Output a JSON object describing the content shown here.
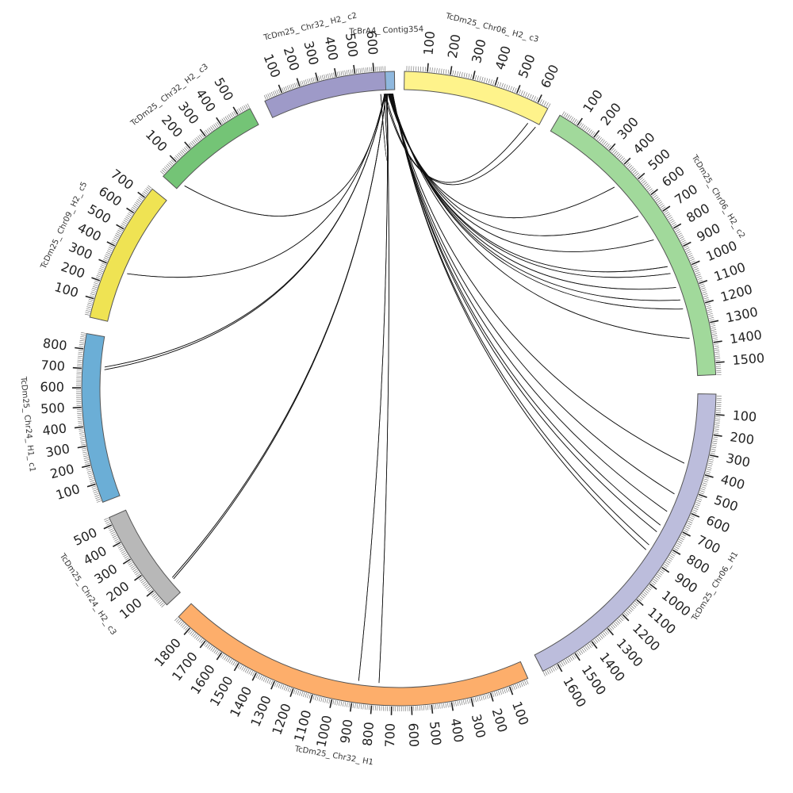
{
  "chart_data": {
    "type": "circos",
    "segments": [
      {
        "id": "contig354",
        "name": "TcBrA4_ Contig354",
        "length": 40,
        "color": "#8fb8de",
        "start_deg": -3.2,
        "end_deg": -0.8,
        "tick_step": 0
      },
      {
        "id": "chr06h2c3",
        "name": "TcDm25_ Chr06_ H2_ c3",
        "length": 650,
        "color": "#fef38b",
        "start_deg": 1.0,
        "end_deg": 28.0,
        "tick_step": 100
      },
      {
        "id": "chr06h2c2",
        "name": "TcDm25_ Chr06_ H2_ c2",
        "length": 1560,
        "color": "#a1d99b",
        "start_deg": 30.5,
        "end_deg": 87.5,
        "tick_step": 100
      },
      {
        "id": "chr06h1",
        "name": "TcDm25_ Chr06_ H1",
        "length": 1680,
        "color": "#bcbddc",
        "start_deg": 91.0,
        "end_deg": 153.0,
        "tick_step": 100
      },
      {
        "id": "chr32h1",
        "name": "TcDm25_ Chr32_ H1",
        "length": 1880,
        "color": "#fdae6b",
        "start_deg": 156.0,
        "end_deg": 224.0,
        "tick_step": 100
      },
      {
        "id": "chr24h2c3",
        "name": "TcDm25_ Chr24_ H2_ c3",
        "length": 540,
        "color": "#b8b8b8",
        "start_deg": 227.0,
        "end_deg": 246.0,
        "tick_step": 100
      },
      {
        "id": "chr24h1c1",
        "name": "TcDm25_ Chr24_ H1_ c1",
        "length": 880,
        "color": "#6baed6",
        "start_deg": 249.0,
        "end_deg": 280.0,
        "tick_step": 100
      },
      {
        "id": "chr09h2c5",
        "name": "TcDm25_ Chr09_ H2_ c5",
        "length": 760,
        "color": "#efe353",
        "start_deg": 283.0,
        "end_deg": 309.0,
        "tick_step": 100
      },
      {
        "id": "chr32h2c3",
        "name": "TcDm25_ Chr32_ H2_ c3",
        "length": 570,
        "color": "#74c476",
        "start_deg": 312.0,
        "end_deg": 332.0,
        "tick_step": 100
      },
      {
        "id": "chr32h2c2",
        "name": "TcDm25_ Chr32_ H2_ c2",
        "length": 660,
        "color": "#9e9ac8",
        "start_deg": 335.0,
        "end_deg": 357.5,
        "tick_step": 100
      }
    ],
    "links": [
      {
        "from": "contig354",
        "from_pos": 5,
        "to": "chr06h2c3",
        "to_pos": 640,
        "color": "#8fb8de"
      },
      {
        "from": "contig354",
        "from_pos": 10,
        "to": "chr06h2c3",
        "to_pos": 600,
        "color": "#a0522d"
      },
      {
        "from": "contig354",
        "from_pos": 12,
        "to": "chr32h2c2",
        "to_pos": 650,
        "color": "#222222"
      },
      {
        "from": "contig354",
        "from_pos": 14,
        "to": "chr32h2c2",
        "to_pos": 630,
        "color": "#222222"
      },
      {
        "from": "contig354",
        "from_pos": 18,
        "to": "chr06h2c2",
        "to_pos": 450,
        "color": "#9e9ac8"
      },
      {
        "from": "contig354",
        "from_pos": 20,
        "to": "chr06h2c2",
        "to_pos": 650,
        "color": "#d2691e"
      },
      {
        "from": "contig354",
        "from_pos": 21,
        "to": "chr06h2c2",
        "to_pos": 800,
        "color": "#222222"
      },
      {
        "from": "contig354",
        "from_pos": 22,
        "to": "chr06h2c2",
        "to_pos": 960,
        "color": "#efe353"
      },
      {
        "from": "contig354",
        "from_pos": 23,
        "to": "chr06h2c2",
        "to_pos": 1000,
        "color": "#222222"
      },
      {
        "from": "contig354",
        "from_pos": 24,
        "to": "chr06h2c2",
        "to_pos": 1080,
        "color": "#6baed6"
      },
      {
        "from": "contig354",
        "from_pos": 25,
        "to": "chr06h2c2",
        "to_pos": 1150,
        "color": "#222222"
      },
      {
        "from": "contig354",
        "from_pos": 26,
        "to": "chr06h2c2",
        "to_pos": 1200,
        "color": "#6baed6"
      },
      {
        "from": "contig354",
        "from_pos": 27,
        "to": "chr06h2c2",
        "to_pos": 1360,
        "color": "#222222"
      },
      {
        "from": "contig354",
        "from_pos": 28,
        "to": "chr06h1",
        "to_pos": 370,
        "color": "#74c476"
      },
      {
        "from": "contig354",
        "from_pos": 29,
        "to": "chr06h1",
        "to_pos": 540,
        "color": "#222222"
      },
      {
        "from": "contig354",
        "from_pos": 30,
        "to": "chr06h1",
        "to_pos": 640,
        "color": "#222222"
      },
      {
        "from": "contig354",
        "from_pos": 31,
        "to": "chr06h1",
        "to_pos": 720,
        "color": "#efe353"
      },
      {
        "from": "contig354",
        "from_pos": 32,
        "to": "chr06h1",
        "to_pos": 760,
        "color": "#8c564b"
      },
      {
        "from": "contig354",
        "from_pos": 33,
        "to": "chr06h1",
        "to_pos": 840,
        "color": "#9e9ac8"
      },
      {
        "from": "contig354",
        "from_pos": 34,
        "to": "chr06h1",
        "to_pos": 870,
        "color": "#222222"
      },
      {
        "from": "contig354",
        "from_pos": 15,
        "to": "chr32h1",
        "to_pos": 770,
        "color": "#fdae6b"
      },
      {
        "from": "contig354",
        "from_pos": 16,
        "to": "chr32h1",
        "to_pos": 880,
        "color": "#222222"
      },
      {
        "from": "contig354",
        "from_pos": 11,
        "to": "chr24h2c3",
        "to_pos": 80,
        "color": "#222222"
      },
      {
        "from": "contig354",
        "from_pos": 11.5,
        "to": "chr24h2c3",
        "to_pos": 90,
        "color": "#222222"
      },
      {
        "from": "contig354",
        "from_pos": 9,
        "to": "chr24h1c1",
        "to_pos": 700,
        "color": "#222222"
      },
      {
        "from": "contig354",
        "from_pos": 9.5,
        "to": "chr24h1c1",
        "to_pos": 715,
        "color": "#222222"
      },
      {
        "from": "contig354",
        "from_pos": 8,
        "to": "chr09h2c5",
        "to_pos": 290,
        "color": "#222222"
      },
      {
        "from": "contig354",
        "from_pos": 7,
        "to": "chr32h2c3",
        "to_pos": 40,
        "color": "#222222"
      }
    ]
  }
}
